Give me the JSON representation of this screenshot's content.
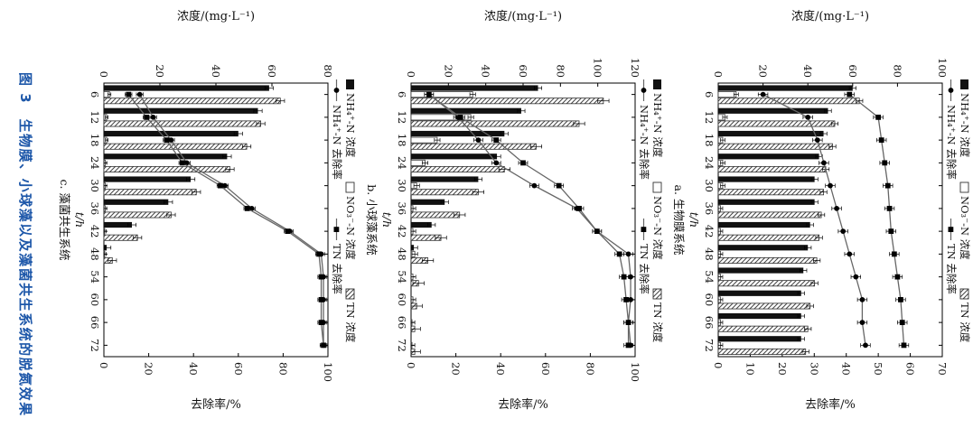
{
  "figure": {
    "caption": "图 3　生物膜、小球藻以及藻菌共生系统的脱氮效果",
    "caption_color": "#1d57a9",
    "legend": {
      "row1": [
        {
          "swatch": "filled-square",
          "label": "NH₄⁺-N 浓度"
        },
        {
          "swatch": "open-square",
          "label": "NO₃⁻-N 浓度"
        },
        {
          "swatch": "hatched-square",
          "label": "TN 浓度"
        }
      ],
      "row2": [
        {
          "swatch": "line-circle",
          "label": "NH₄⁺-N 去除率"
        },
        {
          "swatch": "line-square",
          "label": "TN 去除率"
        }
      ]
    },
    "colors": {
      "bar_black": "#111111",
      "hatch_stroke": "#444444",
      "line_gray": "#666666",
      "marker_black": "#000000"
    }
  },
  "chart_data": [
    {
      "type": "bar",
      "panel": "a",
      "subtitle": "a. 生物膜系统",
      "x": [
        6,
        12,
        18,
        24,
        30,
        36,
        42,
        48,
        54,
        60,
        66,
        72
      ],
      "xlabel": "t/h",
      "conc_axis": {
        "label": "浓度/(mg·L⁻¹)",
        "min": 0,
        "max": 100,
        "step": 20
      },
      "removal_axis": {
        "label": "去除率/%",
        "min": 0,
        "max": 70,
        "step": 10
      },
      "bars": [
        {
          "name": "NH₄⁺-N浓度",
          "style": "black",
          "err": 1.5,
          "values": [
            60,
            49,
            47,
            45,
            43,
            43,
            41,
            40,
            38,
            37,
            37,
            37
          ]
        },
        {
          "name": "NO₃⁻-N浓度",
          "style": "white",
          "err": 1,
          "values": [
            8,
            3,
            2,
            2,
            2,
            1,
            1,
            1,
            1,
            1,
            1,
            1
          ]
        },
        {
          "name": "TN浓度",
          "style": "hatch",
          "err": 1.5,
          "values": [
            63,
            52,
            51,
            48,
            47,
            46,
            45,
            44,
            43,
            41,
            40,
            39
          ]
        }
      ],
      "lines": [
        {
          "name": "NH₄⁺-N去除率",
          "marker": "circle",
          "err": 1.5,
          "values": [
            14,
            28,
            31,
            33,
            35,
            37,
            39,
            41,
            43,
            45,
            45,
            46
          ]
        },
        {
          "name": "TN去除率",
          "marker": "square",
          "err": 1.5,
          "values": [
            41,
            50,
            51,
            52,
            53,
            53.5,
            54,
            55,
            56,
            57,
            57.5,
            58
          ]
        }
      ]
    },
    {
      "type": "bar",
      "panel": "b",
      "subtitle": "b. 小球藻系统",
      "x": [
        6,
        12,
        18,
        24,
        30,
        36,
        42,
        48,
        54,
        60,
        66,
        72
      ],
      "xlabel": "t/h",
      "conc_axis": {
        "label": "浓度/(mg·L⁻¹)",
        "min": 0,
        "max": 120,
        "step": 20
      },
      "removal_axis": {
        "label": "去除率/%",
        "min": 0,
        "max": 100,
        "step": 20
      },
      "bars": [
        {
          "name": "NH₄⁺-N浓度",
          "style": "black",
          "err": 2,
          "values": [
            68,
            59,
            50,
            46,
            36,
            18,
            11,
            1.5,
            0,
            0,
            0,
            0
          ]
        },
        {
          "name": "NO₃⁻-N浓度",
          "style": "white",
          "err": 1.5,
          "values": [
            33,
            32,
            14,
            7.5,
            3,
            1,
            1,
            2,
            1,
            1,
            0.5,
            0.5
          ]
        },
        {
          "name": "TN浓度",
          "style": "hatch",
          "err": 3,
          "values": [
            103,
            90,
            67,
            50,
            36,
            26,
            16,
            9,
            4,
            3,
            2,
            2
          ]
        }
      ],
      "lines": [
        {
          "name": "NH₄⁺-N去除率",
          "marker": "circle",
          "err": 2,
          "values": [
            8,
            21,
            30,
            38,
            55,
            74,
            83,
            97,
            98,
            98,
            97,
            98
          ]
        },
        {
          "name": "TN去除率",
          "marker": "square",
          "err": 2,
          "values": [
            8,
            22,
            38,
            50,
            66,
            75,
            83,
            93,
            95,
            96,
            97,
            97
          ]
        }
      ]
    },
    {
      "type": "bar",
      "panel": "c",
      "subtitle": "c. 藻菌共生系统",
      "x": [
        6,
        12,
        18,
        24,
        30,
        36,
        42,
        48,
        54,
        60,
        66,
        72
      ],
      "xlabel": "t/h",
      "conc_axis": {
        "label": "浓度/(mg·L⁻¹)",
        "min": 0,
        "max": 80,
        "step": 20
      },
      "removal_axis": {
        "label": "去除率/%",
        "min": 0,
        "max": 100,
        "step": 20
      },
      "bars": [
        {
          "name": "NH₄⁺-N浓度",
          "style": "black",
          "err": 1.5,
          "values": [
            59,
            55,
            48,
            44,
            31,
            23,
            10,
            1,
            0,
            0,
            0,
            0
          ]
        },
        {
          "name": "NO₃⁻-N浓度",
          "style": "white",
          "err": 0.5,
          "values": [
            2,
            1,
            1,
            0.5,
            0.5,
            0.5,
            0.3,
            0.3,
            0,
            0,
            0,
            0
          ]
        },
        {
          "name": "TN浓度",
          "style": "hatch",
          "err": 1.5,
          "values": [
            63,
            56,
            51,
            45,
            33,
            24,
            12,
            3,
            0,
            0,
            0,
            0
          ]
        }
      ],
      "lines": [
        {
          "name": "NH₄⁺-N去除率",
          "marker": "circle",
          "err": 1.5,
          "values": [
            16,
            22,
            30,
            37,
            54,
            66,
            83,
            97,
            98,
            98,
            98,
            98
          ]
        },
        {
          "name": "TN去除率",
          "marker": "square",
          "err": 1.5,
          "values": [
            11,
            19,
            28,
            35,
            52,
            64,
            82,
            96,
            97,
            97,
            97,
            98
          ]
        }
      ]
    }
  ]
}
